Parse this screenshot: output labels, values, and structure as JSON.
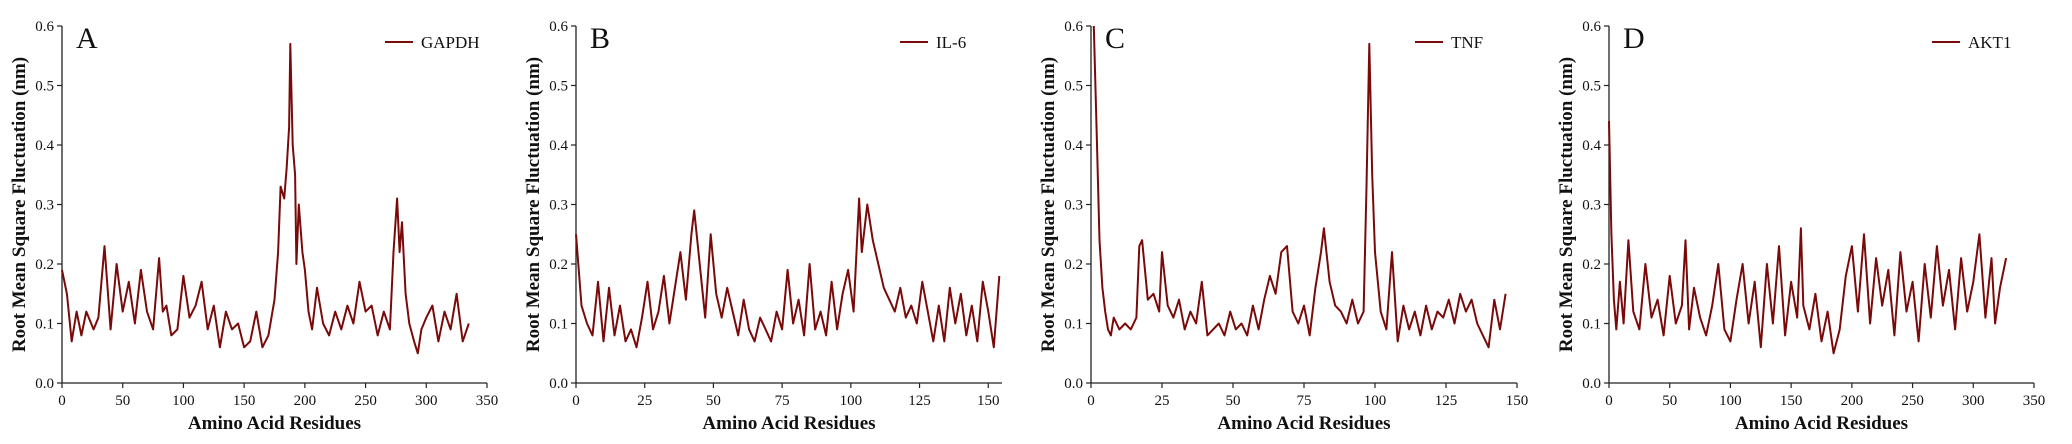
{
  "colors": {
    "series": "#7a0a0a",
    "axis": "#222222"
  },
  "chart_data": [
    {
      "type": "line",
      "panel_label": "A",
      "xlabel": "Amino Acid Residues",
      "ylabel": "Root Mean Square Fluctuation (nm)",
      "xlim": [
        0,
        350
      ],
      "ylim": [
        0,
        0.6
      ],
      "xticks": [
        0,
        50,
        100,
        150,
        200,
        250,
        300,
        350
      ],
      "yticks": [
        0.0,
        0.1,
        0.2,
        0.3,
        0.4,
        0.5,
        0.6
      ],
      "grid": false,
      "legend": "top-right",
      "series": [
        {
          "name": "GAPDH",
          "color": "#7a0a0a",
          "x": [
            0,
            4,
            8,
            12,
            16,
            20,
            26,
            30,
            35,
            40,
            45,
            50,
            55,
            60,
            65,
            70,
            75,
            80,
            83,
            86,
            90,
            95,
            100,
            105,
            110,
            115,
            120,
            125,
            130,
            135,
            140,
            145,
            150,
            155,
            160,
            165,
            170,
            175,
            178,
            180,
            183,
            185,
            187,
            188,
            190,
            192,
            193,
            195,
            198,
            200,
            203,
            206,
            210,
            215,
            220,
            225,
            230,
            235,
            240,
            245,
            250,
            255,
            260,
            265,
            270,
            273,
            276,
            278,
            280,
            283,
            286,
            290,
            293,
            296,
            300,
            305,
            310,
            315,
            320,
            325,
            330,
            335
          ],
          "y": [
            0.19,
            0.15,
            0.07,
            0.12,
            0.08,
            0.12,
            0.09,
            0.11,
            0.23,
            0.09,
            0.2,
            0.12,
            0.17,
            0.1,
            0.19,
            0.12,
            0.09,
            0.21,
            0.12,
            0.13,
            0.08,
            0.09,
            0.18,
            0.11,
            0.13,
            0.17,
            0.09,
            0.13,
            0.06,
            0.12,
            0.09,
            0.1,
            0.06,
            0.07,
            0.12,
            0.06,
            0.08,
            0.14,
            0.22,
            0.33,
            0.31,
            0.36,
            0.43,
            0.57,
            0.4,
            0.35,
            0.2,
            0.3,
            0.22,
            0.19,
            0.12,
            0.09,
            0.16,
            0.1,
            0.08,
            0.12,
            0.09,
            0.13,
            0.1,
            0.17,
            0.12,
            0.13,
            0.08,
            0.12,
            0.09,
            0.22,
            0.31,
            0.22,
            0.27,
            0.15,
            0.1,
            0.07,
            0.05,
            0.09,
            0.11,
            0.13,
            0.07,
            0.12,
            0.09,
            0.15,
            0.07,
            0.1
          ]
        }
      ]
    },
    {
      "type": "line",
      "panel_label": "B",
      "xlabel": "Amino Acid Residues",
      "ylabel": "Root Mean Square Fluctuation (nm)",
      "xlim": [
        0,
        155
      ],
      "ylim": [
        0,
        0.6
      ],
      "xticks": [
        0,
        25,
        50,
        75,
        100,
        125,
        150
      ],
      "yticks": [
        0.0,
        0.1,
        0.2,
        0.3,
        0.4,
        0.5,
        0.6
      ],
      "grid": false,
      "legend": "top-right",
      "series": [
        {
          "name": "IL-6",
          "color": "#7a0a0a",
          "x": [
            0,
            2,
            4,
            6,
            8,
            10,
            12,
            14,
            16,
            18,
            20,
            22,
            24,
            26,
            28,
            30,
            32,
            34,
            36,
            38,
            40,
            42,
            43,
            45,
            47,
            49,
            51,
            53,
            55,
            57,
            59,
            61,
            63,
            65,
            67,
            69,
            71,
            73,
            75,
            77,
            79,
            81,
            83,
            85,
            87,
            89,
            91,
            93,
            95,
            97,
            99,
            101,
            103,
            104,
            106,
            108,
            110,
            112,
            114,
            116,
            118,
            120,
            122,
            124,
            126,
            128,
            130,
            132,
            134,
            136,
            138,
            140,
            142,
            144,
            146,
            148,
            150,
            152,
            154
          ],
          "y": [
            0.25,
            0.13,
            0.1,
            0.08,
            0.17,
            0.07,
            0.16,
            0.08,
            0.13,
            0.07,
            0.09,
            0.06,
            0.11,
            0.17,
            0.09,
            0.12,
            0.18,
            0.1,
            0.16,
            0.22,
            0.14,
            0.25,
            0.29,
            0.2,
            0.11,
            0.25,
            0.15,
            0.11,
            0.16,
            0.12,
            0.08,
            0.14,
            0.09,
            0.07,
            0.11,
            0.09,
            0.07,
            0.12,
            0.09,
            0.19,
            0.1,
            0.14,
            0.08,
            0.2,
            0.09,
            0.12,
            0.08,
            0.17,
            0.09,
            0.15,
            0.19,
            0.12,
            0.31,
            0.22,
            0.3,
            0.24,
            0.2,
            0.16,
            0.14,
            0.12,
            0.16,
            0.11,
            0.13,
            0.1,
            0.17,
            0.12,
            0.07,
            0.13,
            0.07,
            0.16,
            0.1,
            0.15,
            0.08,
            0.13,
            0.07,
            0.17,
            0.12,
            0.06,
            0.18
          ]
        }
      ]
    },
    {
      "type": "line",
      "panel_label": "C",
      "xlabel": "Amino Acid Residues",
      "ylabel": "Root Mean Square Fluctuation (nm)",
      "xlim": [
        0,
        150
      ],
      "ylim": [
        0,
        0.6
      ],
      "xticks": [
        0,
        25,
        50,
        75,
        100,
        125,
        150
      ],
      "yticks": [
        0.0,
        0.1,
        0.2,
        0.3,
        0.4,
        0.5,
        0.6
      ],
      "grid": false,
      "legend": "top-right",
      "series": [
        {
          "name": "TNF",
          "color": "#7a0a0a",
          "x": [
            1,
            2,
            3,
            4,
            5,
            6,
            7,
            8,
            10,
            12,
            14,
            16,
            17,
            18,
            20,
            22,
            24,
            25,
            27,
            29,
            31,
            33,
            35,
            37,
            39,
            41,
            43,
            45,
            47,
            49,
            51,
            53,
            55,
            57,
            59,
            61,
            63,
            65,
            67,
            69,
            71,
            73,
            75,
            77,
            79,
            81,
            82,
            84,
            86,
            88,
            90,
            92,
            94,
            96,
            97,
            98,
            99,
            100,
            102,
            104,
            106,
            108,
            110,
            112,
            114,
            116,
            118,
            120,
            122,
            124,
            126,
            128,
            130,
            132,
            134,
            136,
            138,
            140,
            142,
            144,
            146
          ],
          "y": [
            0.6,
            0.42,
            0.24,
            0.16,
            0.12,
            0.09,
            0.08,
            0.11,
            0.09,
            0.1,
            0.09,
            0.11,
            0.23,
            0.24,
            0.14,
            0.15,
            0.12,
            0.22,
            0.13,
            0.11,
            0.14,
            0.09,
            0.12,
            0.1,
            0.17,
            0.08,
            0.09,
            0.1,
            0.08,
            0.12,
            0.09,
            0.1,
            0.08,
            0.13,
            0.09,
            0.14,
            0.18,
            0.15,
            0.22,
            0.23,
            0.12,
            0.1,
            0.13,
            0.08,
            0.16,
            0.22,
            0.26,
            0.17,
            0.13,
            0.12,
            0.1,
            0.14,
            0.1,
            0.12,
            0.33,
            0.57,
            0.35,
            0.22,
            0.12,
            0.09,
            0.22,
            0.07,
            0.13,
            0.09,
            0.12,
            0.08,
            0.13,
            0.09,
            0.12,
            0.11,
            0.14,
            0.1,
            0.15,
            0.12,
            0.14,
            0.1,
            0.08,
            0.06,
            0.14,
            0.09,
            0.15
          ]
        }
      ]
    },
    {
      "type": "line",
      "panel_label": "D",
      "xlabel": "Amino Acid Residues",
      "ylabel": "Root Mean Square Fluctuation (nm)",
      "xlim": [
        0,
        350
      ],
      "ylim": [
        0,
        0.6
      ],
      "xticks": [
        0,
        50,
        100,
        150,
        200,
        250,
        300,
        350
      ],
      "yticks": [
        0.0,
        0.1,
        0.2,
        0.3,
        0.4,
        0.5,
        0.6
      ],
      "grid": false,
      "legend": "top-right",
      "series": [
        {
          "name": "AKT1",
          "color": "#7a0a0a",
          "x": [
            0,
            2,
            4,
            6,
            9,
            12,
            16,
            20,
            25,
            30,
            35,
            40,
            45,
            50,
            55,
            60,
            63,
            66,
            70,
            75,
            80,
            85,
            90,
            95,
            100,
            105,
            110,
            115,
            120,
            125,
            130,
            135,
            140,
            145,
            150,
            155,
            158,
            160,
            165,
            170,
            175,
            180,
            185,
            190,
            195,
            200,
            205,
            210,
            215,
            220,
            225,
            230,
            235,
            240,
            245,
            250,
            255,
            260,
            265,
            270,
            275,
            280,
            285,
            290,
            295,
            300,
            305,
            310,
            315,
            318,
            322,
            327
          ],
          "y": [
            0.44,
            0.25,
            0.14,
            0.09,
            0.17,
            0.1,
            0.24,
            0.12,
            0.09,
            0.2,
            0.11,
            0.14,
            0.08,
            0.18,
            0.1,
            0.13,
            0.24,
            0.09,
            0.16,
            0.11,
            0.08,
            0.13,
            0.2,
            0.09,
            0.07,
            0.14,
            0.2,
            0.1,
            0.17,
            0.06,
            0.2,
            0.1,
            0.23,
            0.08,
            0.17,
            0.11,
            0.26,
            0.13,
            0.09,
            0.15,
            0.07,
            0.12,
            0.05,
            0.09,
            0.18,
            0.23,
            0.12,
            0.25,
            0.1,
            0.21,
            0.13,
            0.19,
            0.08,
            0.22,
            0.12,
            0.17,
            0.07,
            0.2,
            0.11,
            0.23,
            0.13,
            0.19,
            0.09,
            0.21,
            0.12,
            0.17,
            0.25,
            0.11,
            0.21,
            0.1,
            0.16,
            0.21
          ]
        }
      ]
    }
  ]
}
